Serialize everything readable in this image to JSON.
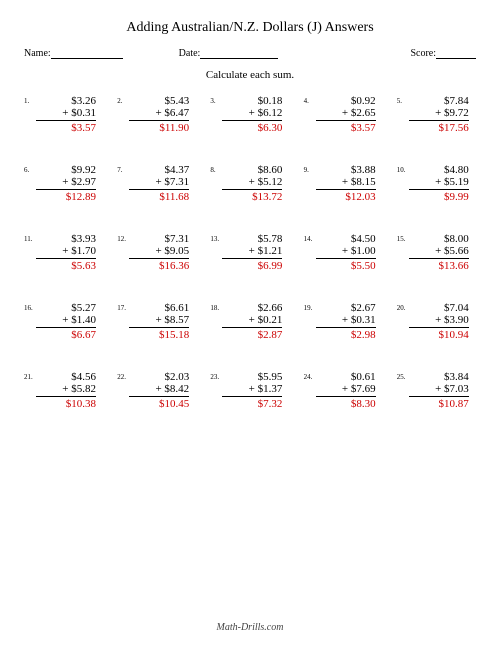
{
  "title": "Adding Australian/N.Z. Dollars (J) Answers",
  "labels": {
    "name": "Name:",
    "date": "Date:",
    "score": "Score:"
  },
  "instruction": "Calculate each sum.",
  "footer": "Math-Drills.com",
  "answer_color": "#cc0000",
  "problems": [
    {
      "n": "1.",
      "a": "$3.26",
      "b": "+ $0.31",
      "ans": "$3.57"
    },
    {
      "n": "2.",
      "a": "$5.43",
      "b": "+ $6.47",
      "ans": "$11.90"
    },
    {
      "n": "3.",
      "a": "$0.18",
      "b": "+ $6.12",
      "ans": "$6.30"
    },
    {
      "n": "4.",
      "a": "$0.92",
      "b": "+ $2.65",
      "ans": "$3.57"
    },
    {
      "n": "5.",
      "a": "$7.84",
      "b": "+ $9.72",
      "ans": "$17.56"
    },
    {
      "n": "6.",
      "a": "$9.92",
      "b": "+ $2.97",
      "ans": "$12.89"
    },
    {
      "n": "7.",
      "a": "$4.37",
      "b": "+ $7.31",
      "ans": "$11.68"
    },
    {
      "n": "8.",
      "a": "$8.60",
      "b": "+ $5.12",
      "ans": "$13.72"
    },
    {
      "n": "9.",
      "a": "$3.88",
      "b": "+ $8.15",
      "ans": "$12.03"
    },
    {
      "n": "10.",
      "a": "$4.80",
      "b": "+ $5.19",
      "ans": "$9.99"
    },
    {
      "n": "11.",
      "a": "$3.93",
      "b": "+ $1.70",
      "ans": "$5.63"
    },
    {
      "n": "12.",
      "a": "$7.31",
      "b": "+ $9.05",
      "ans": "$16.36"
    },
    {
      "n": "13.",
      "a": "$5.78",
      "b": "+ $1.21",
      "ans": "$6.99"
    },
    {
      "n": "14.",
      "a": "$4.50",
      "b": "+ $1.00",
      "ans": "$5.50"
    },
    {
      "n": "15.",
      "a": "$8.00",
      "b": "+ $5.66",
      "ans": "$13.66"
    },
    {
      "n": "16.",
      "a": "$5.27",
      "b": "+ $1.40",
      "ans": "$6.67"
    },
    {
      "n": "17.",
      "a": "$6.61",
      "b": "+ $8.57",
      "ans": "$15.18"
    },
    {
      "n": "18.",
      "a": "$2.66",
      "b": "+ $0.21",
      "ans": "$2.87"
    },
    {
      "n": "19.",
      "a": "$2.67",
      "b": "+ $0.31",
      "ans": "$2.98"
    },
    {
      "n": "20.",
      "a": "$7.04",
      "b": "+ $3.90",
      "ans": "$10.94"
    },
    {
      "n": "21.",
      "a": "$4.56",
      "b": "+ $5.82",
      "ans": "$10.38"
    },
    {
      "n": "22.",
      "a": "$2.03",
      "b": "+ $8.42",
      "ans": "$10.45"
    },
    {
      "n": "23.",
      "a": "$5.95",
      "b": "+ $1.37",
      "ans": "$7.32"
    },
    {
      "n": "24.",
      "a": "$0.61",
      "b": "+ $7.69",
      "ans": "$8.30"
    },
    {
      "n": "25.",
      "a": "$3.84",
      "b": "+ $7.03",
      "ans": "$10.87"
    }
  ]
}
